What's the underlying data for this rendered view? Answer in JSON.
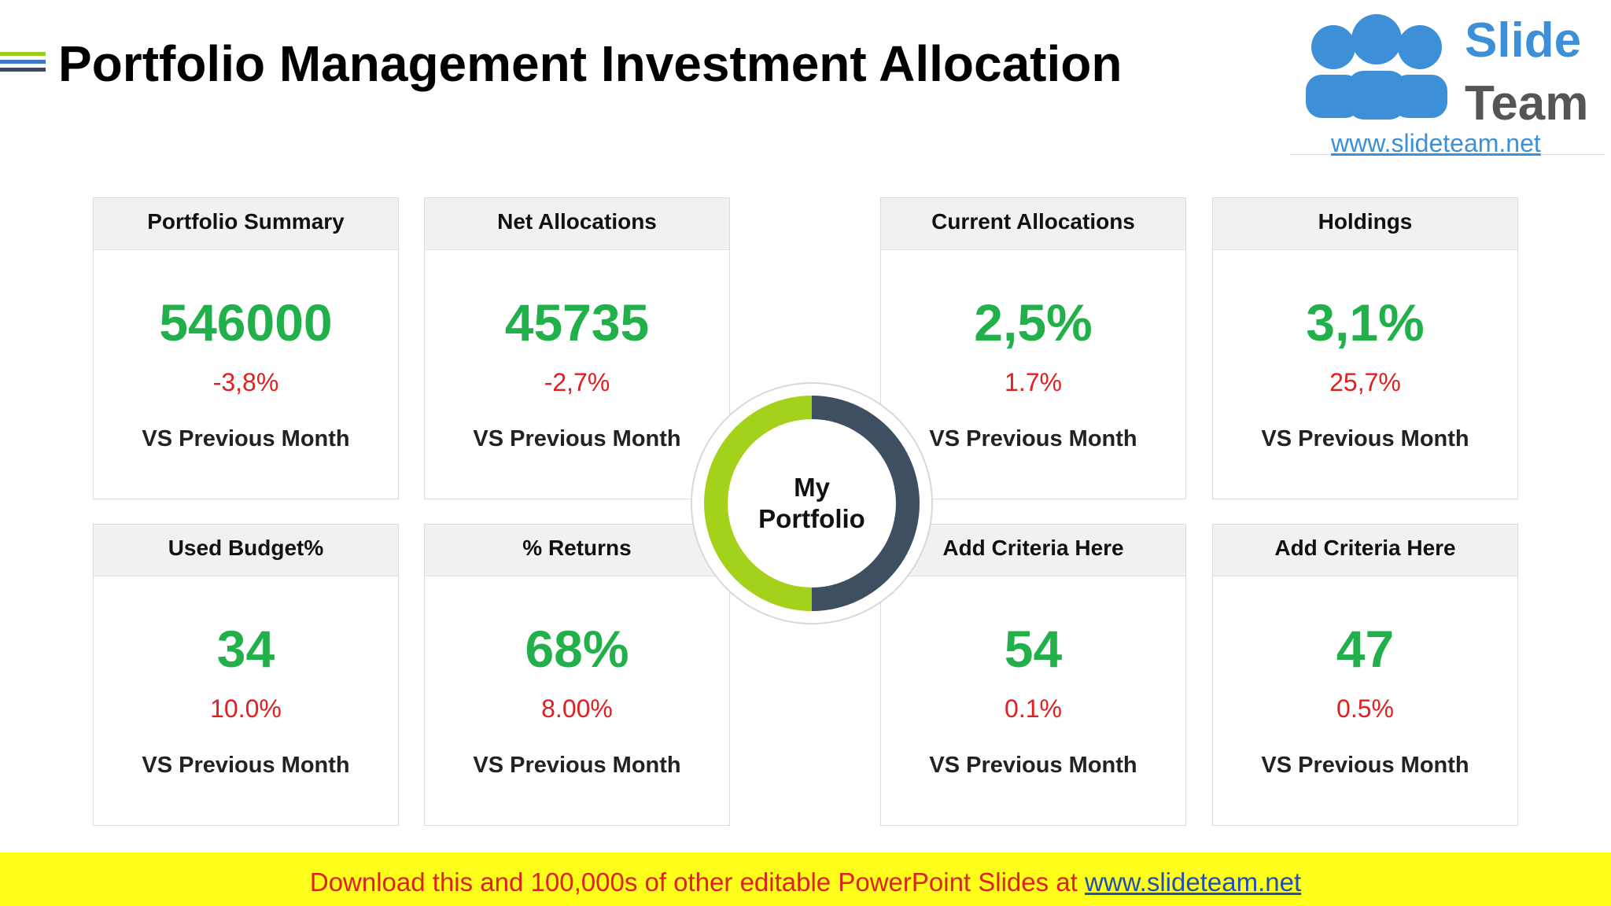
{
  "header": {
    "title": "Portfolio Management Investment Allocation"
  },
  "logo": {
    "line1": "Slide",
    "line2": "Team",
    "url": "www.slideteam.net"
  },
  "center": {
    "label": "My Portfolio"
  },
  "cards": [
    {
      "title": "Portfolio Summary",
      "value": "546000",
      "change": "-3,8%",
      "note": "VS Previous Month"
    },
    {
      "title": "Net Allocations",
      "value": "45735",
      "change": "-2,7%",
      "note": "VS Previous Month"
    },
    {
      "title": "Current Allocations",
      "value": "2,5%",
      "change": "1.7%",
      "note": "VS Previous Month"
    },
    {
      "title": "Holdings",
      "value": "3,1%",
      "change": "25,7%",
      "note": "VS Previous Month"
    },
    {
      "title": "Used Budget%",
      "value": "34",
      "change": "10.0%",
      "note": "VS Previous Month"
    },
    {
      "title": "% Returns",
      "value": "68%",
      "change": "8.00%",
      "note": "VS Previous Month"
    },
    {
      "title": "Add Criteria Here",
      "value": "54",
      "change": "0.1%",
      "note": "VS Previous Month"
    },
    {
      "title": "Add Criteria Here",
      "value": "47",
      "change": "0.5%",
      "note": "VS Previous Month"
    }
  ],
  "footer": {
    "text": "Download this and 100,000s of other editable PowerPoint Slides at",
    "link": "www.slideteam.net"
  }
}
